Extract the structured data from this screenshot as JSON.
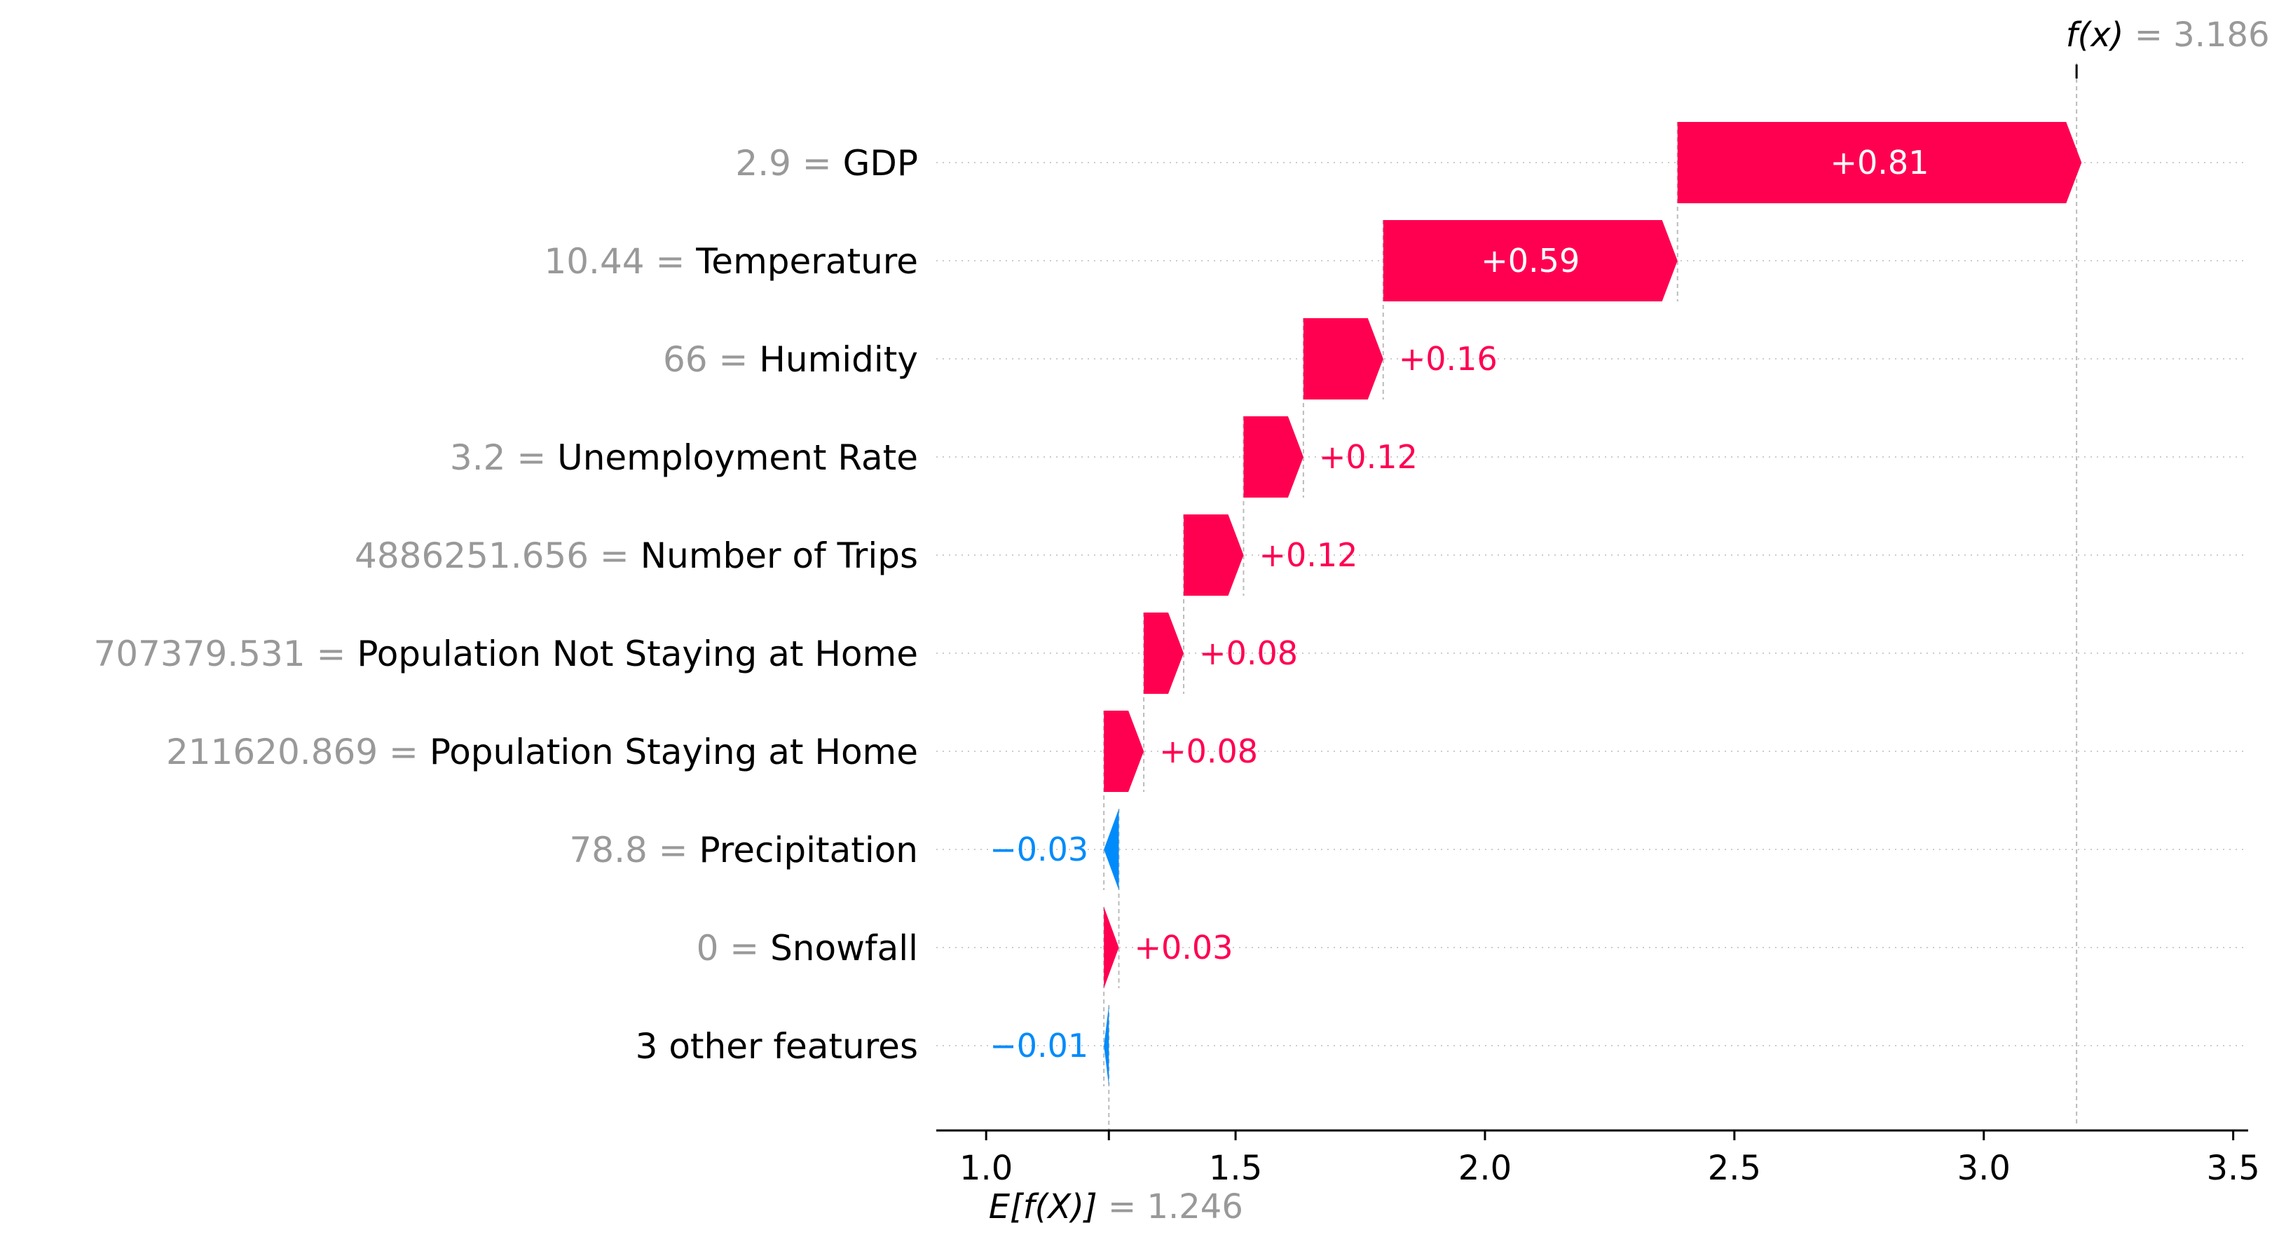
{
  "chart_data": {
    "type": "waterfall",
    "title": "",
    "xlabel": "",
    "ylabel": "",
    "xlim": [
      0.9,
      3.53
    ],
    "x_ticks": [
      1.0,
      1.5,
      2.0,
      2.5,
      3.0,
      3.5
    ],
    "x_tick_labels": [
      "1.0",
      "1.5",
      "2.0",
      "2.5",
      "3.0",
      "3.5"
    ],
    "base_value": 1.246,
    "base_label": "E[f(X)]",
    "base_value_text": "= 1.246",
    "output_value": 3.186,
    "output_label": "f(x)",
    "output_value_text": "= 3.186",
    "colors": {
      "positive": "#ff0051",
      "negative": "#008bfb",
      "feature_value": "#999999",
      "feature_name": "#000000",
      "connector": "#bbbbbb",
      "grid": "#cccccc"
    },
    "features": [
      {
        "value": "2.9",
        "name": "GDP",
        "contribution": 0.81,
        "label": "+0.81"
      },
      {
        "value": "10.44",
        "name": "Temperature",
        "contribution": 0.59,
        "label": "+0.59"
      },
      {
        "value": "66",
        "name": "Humidity",
        "contribution": 0.16,
        "label": "+0.16"
      },
      {
        "value": "3.2",
        "name": "Unemployment Rate",
        "contribution": 0.12,
        "label": "+0.12"
      },
      {
        "value": "4886251.656",
        "name": "Number of Trips",
        "contribution": 0.12,
        "label": "+0.12"
      },
      {
        "value": "707379.531",
        "name": "Population Not Staying at Home",
        "contribution": 0.08,
        "label": "+0.08"
      },
      {
        "value": "211620.869",
        "name": "Population Staying at Home",
        "contribution": 0.08,
        "label": "+0.08"
      },
      {
        "value": "78.8",
        "name": "Precipitation",
        "contribution": -0.03,
        "label": "−0.03"
      },
      {
        "value": "0",
        "name": "Snowfall",
        "contribution": 0.03,
        "label": "+0.03"
      },
      {
        "value": "",
        "name": "3 other features",
        "contribution": -0.01,
        "label": "−0.01"
      }
    ]
  }
}
